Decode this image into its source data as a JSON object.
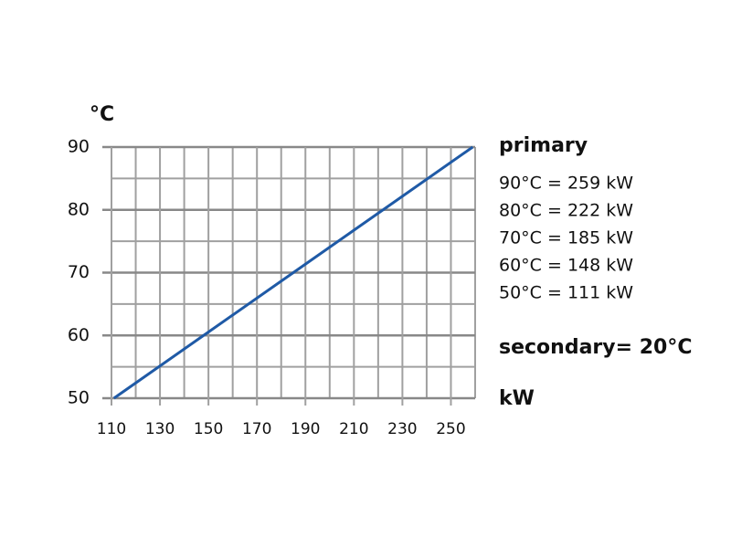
{
  "chart_data": {
    "type": "line",
    "y_label": "°C",
    "x_label": "kW",
    "x": [
      111,
      148,
      185,
      222,
      259
    ],
    "series": [
      {
        "name": "primary",
        "color": "#1f5aa6",
        "values": [
          50,
          60,
          70,
          80,
          90
        ]
      }
    ],
    "xlim": [
      110,
      260
    ],
    "xticks": [
      110,
      130,
      150,
      170,
      190,
      210,
      230,
      250
    ],
    "xgrid": [
      120,
      140,
      160,
      180,
      200,
      220,
      240,
      260
    ],
    "ylim": [
      50,
      90
    ],
    "yticks": [
      50,
      60,
      70,
      80,
      90
    ],
    "ygrid": [
      55,
      65,
      75,
      85
    ],
    "grid": true,
    "legend_title": "primary",
    "annotations": [
      "90°C =  259 kW",
      "80°C =  222 kW",
      "70°C =  185 kW",
      "60°C =  148 kW",
      "50°C =  111 kW"
    ],
    "secondary": "secondary= 20°C"
  }
}
